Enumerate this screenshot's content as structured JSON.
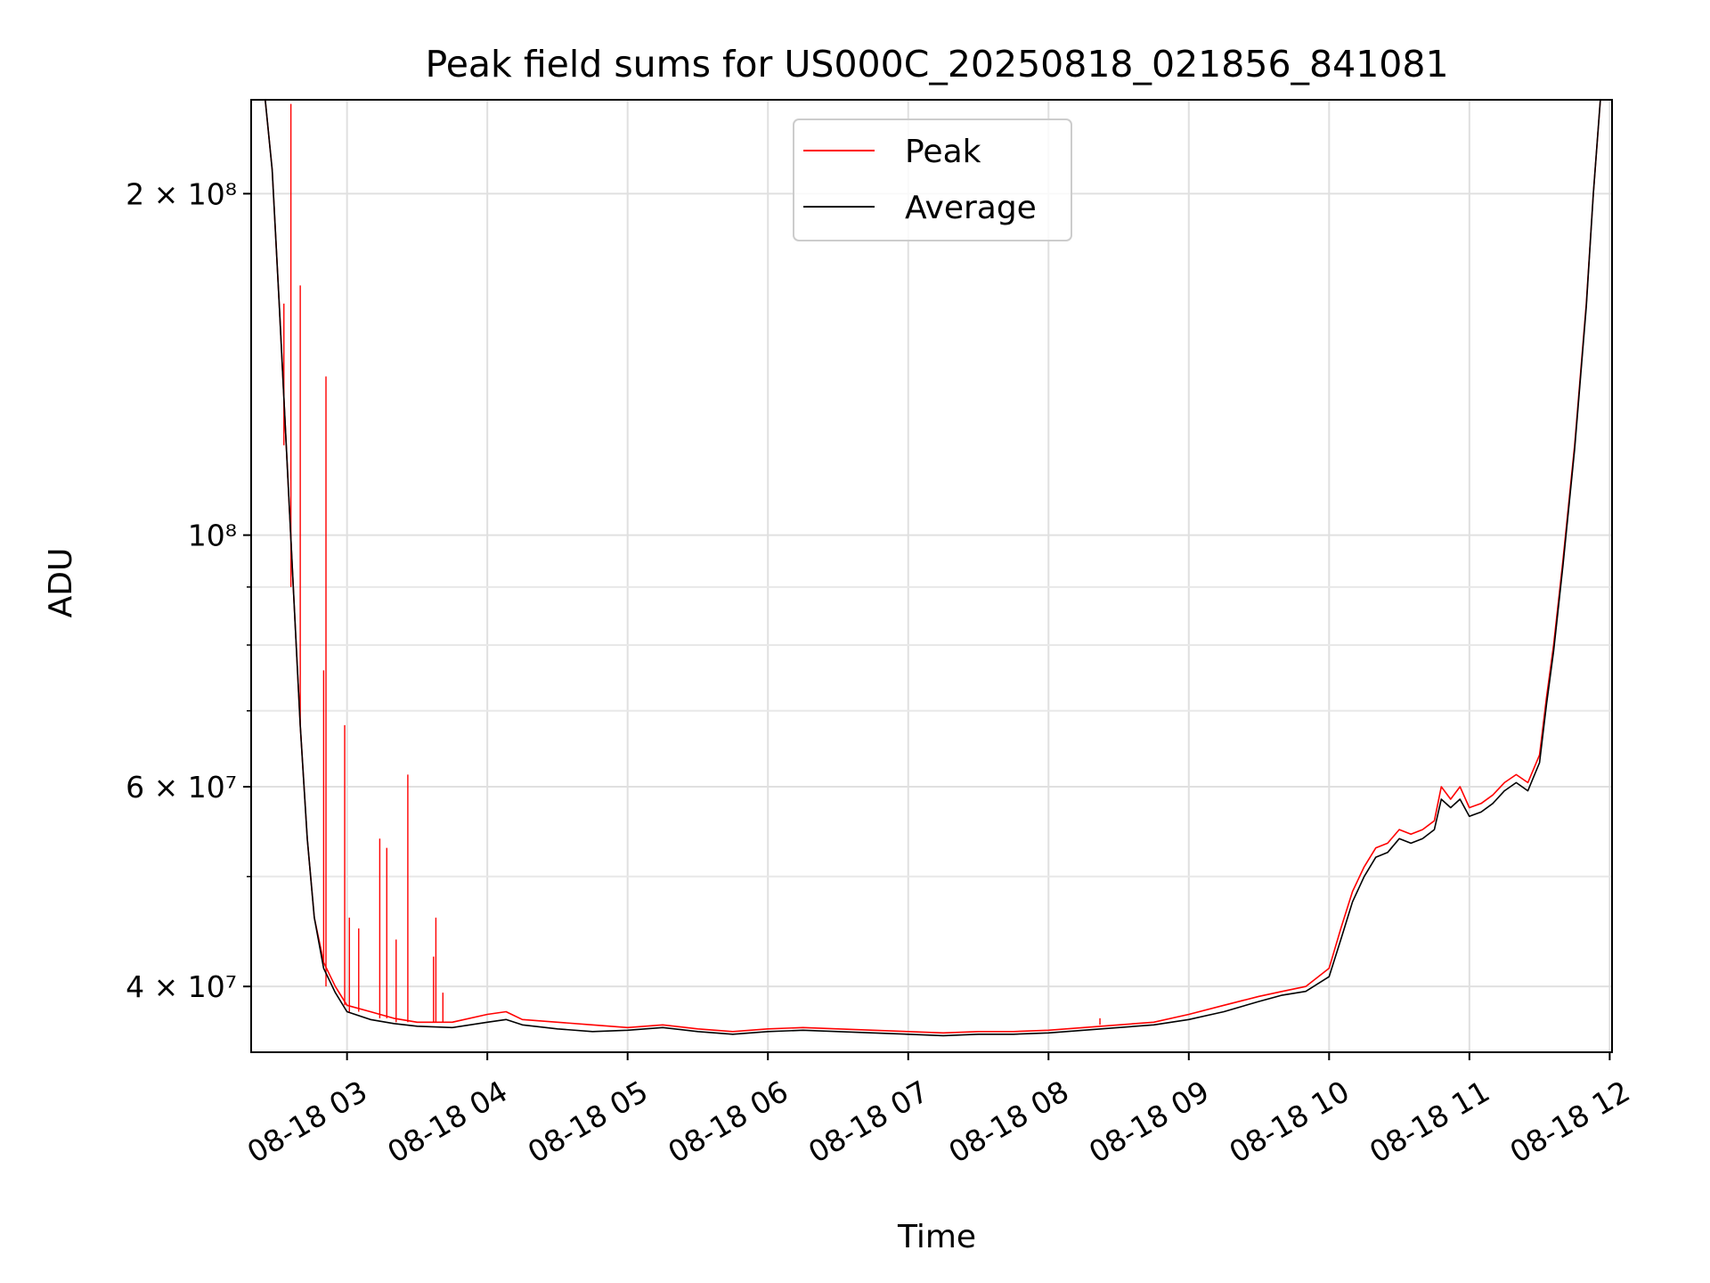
{
  "chart_data": {
    "type": "line",
    "title": "Peak field sums for US000C_20250818_021856_841081",
    "xlabel": "Time",
    "ylabel": "ADU",
    "yscale": "log",
    "grid": true,
    "legend_position": "upper center",
    "xlim": [
      "08-18 02:19",
      "08-18 12:01"
    ],
    "ylim": [
      35000000.0,
      242000000.0
    ],
    "x_ticks": [
      "08-18 03",
      "08-18 04",
      "08-18 05",
      "08-18 06",
      "08-18 07",
      "08-18 08",
      "08-18 09",
      "08-18 10",
      "08-18 11",
      "08-18 12"
    ],
    "y_tick_labels": [
      {
        "value": 40000000.0,
        "label": "4 × 10⁷"
      },
      {
        "value": 60000000.0,
        "label": "6 × 10⁷"
      },
      {
        "value": 100000000.0,
        "label": "10⁸"
      },
      {
        "value": 200000000.0,
        "label": "2 × 10⁸"
      }
    ],
    "y_minor_ticks": [
      50000000.0,
      70000000.0,
      80000000.0,
      90000000.0
    ],
    "series": [
      {
        "name": "Peak",
        "color": "#ff0000",
        "x": [
          "08-18 02:25",
          "08-18 02:28",
          "08-18 02:31",
          "08-18 02:34",
          "08-18 02:37",
          "08-18 02:40",
          "08-18 02:43",
          "08-18 02:46",
          "08-18 02:50",
          "08-18 02:55",
          "08-18 03:00",
          "08-18 03:10",
          "08-18 03:20",
          "08-18 03:30",
          "08-18 03:45",
          "08-18 04:00",
          "08-18 04:08",
          "08-18 04:15",
          "08-18 04:30",
          "08-18 04:45",
          "08-18 05:00",
          "08-18 05:15",
          "08-18 05:30",
          "08-18 05:45",
          "08-18 06:00",
          "08-18 06:15",
          "08-18 06:30",
          "08-18 06:45",
          "08-18 07:00",
          "08-18 07:15",
          "08-18 07:30",
          "08-18 07:45",
          "08-18 08:00",
          "08-18 08:15",
          "08-18 08:30",
          "08-18 08:45",
          "08-18 09:00",
          "08-18 09:15",
          "08-18 09:30",
          "08-18 09:40",
          "08-18 09:50",
          "08-18 10:00",
          "08-18 10:05",
          "08-18 10:10",
          "08-18 10:15",
          "08-18 10:20",
          "08-18 10:25",
          "08-18 10:30",
          "08-18 10:35",
          "08-18 10:40",
          "08-18 10:45",
          "08-18 10:48",
          "08-18 10:52",
          "08-18 10:56",
          "08-18 11:00",
          "08-18 11:05",
          "08-18 11:10",
          "08-18 11:15",
          "08-18 11:20",
          "08-18 11:25",
          "08-18 11:30",
          "08-18 11:33",
          "08-18 11:36",
          "08-18 11:40",
          "08-18 11:45",
          "08-18 11:50",
          "08-18 11:53",
          "08-18 11:56"
        ],
        "values": [
          242000000.0,
          210000000.0,
          160000000.0,
          120000000.0,
          90000000.0,
          68000000.0,
          54000000.0,
          46000000.0,
          42000000.0,
          40000000.0,
          38500000.0,
          38000000.0,
          37500000.0,
          37200000.0,
          37200000.0,
          37800000.0,
          38000000.0,
          37400000.0,
          37200000.0,
          37000000.0,
          36800000.0,
          37000000.0,
          36700000.0,
          36500000.0,
          36700000.0,
          36800000.0,
          36700000.0,
          36600000.0,
          36500000.0,
          36400000.0,
          36500000.0,
          36500000.0,
          36600000.0,
          36800000.0,
          37000000.0,
          37200000.0,
          37800000.0,
          38500000.0,
          39200000.0,
          39600000.0,
          40000000.0,
          41500000.0,
          45000000.0,
          48500000.0,
          51000000.0,
          53000000.0,
          53500000.0,
          55000000.0,
          54500000.0,
          55000000.0,
          56000000.0,
          60000000.0,
          58500000.0,
          60000000.0,
          57500000.0,
          58000000.0,
          59000000.0,
          60500000.0,
          61500000.0,
          60500000.0,
          64000000.0,
          72000000.0,
          80000000.0,
          95000000.0,
          120000000.0,
          160000000.0,
          200000000.0,
          242000000.0
        ],
        "spikes": [
          {
            "x": "08-18 02:33",
            "y": 160000000.0
          },
          {
            "x": "08-18 02:36",
            "y": 240000000.0
          },
          {
            "x": "08-18 02:40",
            "y": 166000000.0
          },
          {
            "x": "08-18 02:51",
            "y": 138000000.0
          },
          {
            "x": "08-18 02:50",
            "y": 76000000.0
          },
          {
            "x": "08-18 02:59",
            "y": 68000000.0
          },
          {
            "x": "08-18 03:01",
            "y": 46000000.0
          },
          {
            "x": "08-18 03:05",
            "y": 45000000.0
          },
          {
            "x": "08-18 03:14",
            "y": 54000000.0
          },
          {
            "x": "08-18 03:17",
            "y": 53000000.0
          },
          {
            "x": "08-18 03:26",
            "y": 61500000.0
          },
          {
            "x": "08-18 03:21",
            "y": 44000000.0
          },
          {
            "x": "08-18 03:38",
            "y": 46000000.0
          },
          {
            "x": "08-18 03:37",
            "y": 42500000.0
          },
          {
            "x": "08-18 03:41",
            "y": 39500000.0
          },
          {
            "x": "08-18 08:22",
            "y": 37500000.0
          }
        ]
      },
      {
        "name": "Average",
        "color": "#000000",
        "x": [
          "08-18 02:25",
          "08-18 02:28",
          "08-18 02:31",
          "08-18 02:34",
          "08-18 02:37",
          "08-18 02:40",
          "08-18 02:43",
          "08-18 02:46",
          "08-18 02:50",
          "08-18 02:55",
          "08-18 03:00",
          "08-18 03:10",
          "08-18 03:20",
          "08-18 03:30",
          "08-18 03:45",
          "08-18 04:00",
          "08-18 04:08",
          "08-18 04:15",
          "08-18 04:30",
          "08-18 04:45",
          "08-18 05:00",
          "08-18 05:15",
          "08-18 05:30",
          "08-18 05:45",
          "08-18 06:00",
          "08-18 06:15",
          "08-18 06:30",
          "08-18 06:45",
          "08-18 07:00",
          "08-18 07:15",
          "08-18 07:30",
          "08-18 07:45",
          "08-18 08:00",
          "08-18 08:15",
          "08-18 08:30",
          "08-18 08:45",
          "08-18 09:00",
          "08-18 09:15",
          "08-18 09:30",
          "08-18 09:40",
          "08-18 09:50",
          "08-18 10:00",
          "08-18 10:05",
          "08-18 10:10",
          "08-18 10:15",
          "08-18 10:20",
          "08-18 10:25",
          "08-18 10:30",
          "08-18 10:35",
          "08-18 10:40",
          "08-18 10:45",
          "08-18 10:48",
          "08-18 10:52",
          "08-18 10:56",
          "08-18 11:00",
          "08-18 11:05",
          "08-18 11:10",
          "08-18 11:15",
          "08-18 11:20",
          "08-18 11:25",
          "08-18 11:30",
          "08-18 11:33",
          "08-18 11:36",
          "08-18 11:40",
          "08-18 11:45",
          "08-18 11:50",
          "08-18 11:53",
          "08-18 11:56"
        ],
        "values": [
          242000000.0,
          210000000.0,
          160000000.0,
          120000000.0,
          90000000.0,
          68000000.0,
          54000000.0,
          46000000.0,
          41500000.0,
          39500000.0,
          38000000.0,
          37400000.0,
          37100000.0,
          36900000.0,
          36800000.0,
          37200000.0,
          37400000.0,
          37000000.0,
          36700000.0,
          36500000.0,
          36600000.0,
          36800000.0,
          36500000.0,
          36300000.0,
          36500000.0,
          36600000.0,
          36500000.0,
          36400000.0,
          36300000.0,
          36200000.0,
          36300000.0,
          36300000.0,
          36400000.0,
          36600000.0,
          36800000.0,
          37000000.0,
          37400000.0,
          38000000.0,
          38800000.0,
          39300000.0,
          39600000.0,
          40800000.0,
          44000000.0,
          47500000.0,
          50000000.0,
          52000000.0,
          52500000.0,
          54000000.0,
          53500000.0,
          54000000.0,
          55000000.0,
          58500000.0,
          57500000.0,
          58500000.0,
          56500000.0,
          57000000.0,
          58000000.0,
          59500000.0,
          60500000.0,
          59500000.0,
          63000000.0,
          71000000.0,
          79000000.0,
          94000000.0,
          119000000.0,
          159000000.0,
          200000000.0,
          242000000.0
        ]
      }
    ]
  }
}
